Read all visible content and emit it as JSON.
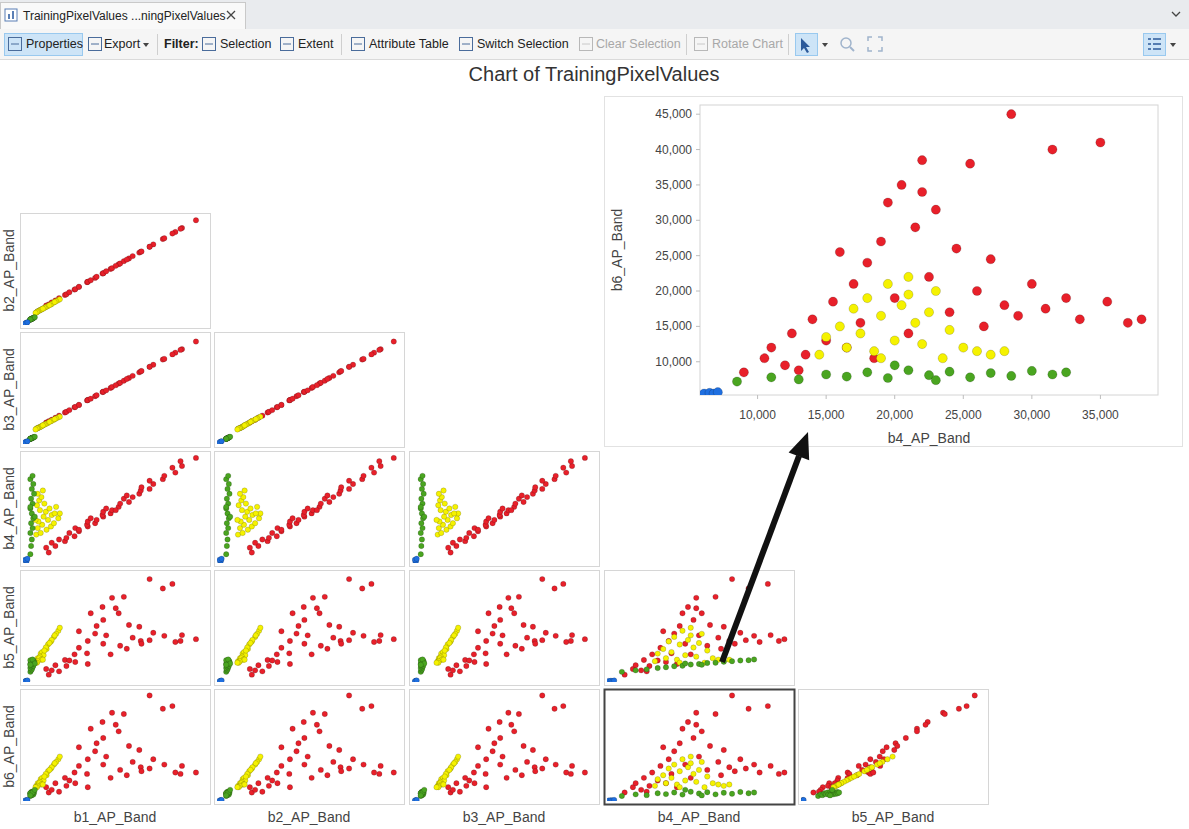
{
  "window": {
    "tab": "TrainingPixelValues ...ningPixelValues"
  },
  "toolbar": {
    "buttons": [
      "Properties",
      "Export"
    ],
    "filter_label": "Filter:",
    "filters": [
      "Selection",
      "Extent"
    ],
    "actions": [
      "Attribute Table",
      "Switch Selection",
      "Clear Selection",
      "Rotate Chart"
    ]
  },
  "chart_data": {
    "type": "scatter_matrix",
    "title": "Chart of TrainingPixelValues",
    "marker": "circle",
    "tick_labels": false,
    "dimensions": [
      {
        "label": "b1_AP_Band",
        "range": [
          7000,
          32000
        ]
      },
      {
        "label": "b2_AP_Band",
        "range": [
          6000,
          34000
        ]
      },
      {
        "label": "b3_AP_Band",
        "range": [
          5500,
          37000
        ]
      },
      {
        "label": "b4_AP_Band",
        "range": [
          5800,
          39200
        ]
      },
      {
        "label": "b5_AP_Band",
        "range": [
          5000,
          48000
        ]
      },
      {
        "label": "b6_AP_Band",
        "range": [
          5300,
          46300
        ]
      }
    ],
    "series": [
      {
        "color": "#e8202a",
        "values": [
          [
            10500,
            11300,
            12100,
            9000,
            7900,
            8500
          ],
          [
            10150,
            11000,
            11700,
            10500,
            10100,
            10500
          ],
          [
            11400,
            12300,
            13100,
            11000,
            11600,
            12000
          ],
          [
            10900,
            11800,
            12500,
            12000,
            9600,
            9500
          ],
          [
            12700,
            13700,
            14600,
            12500,
            13700,
            14000
          ],
          [
            12900,
            13900,
            14800,
            13500,
            11300,
            11000
          ],
          [
            14000,
            15100,
            16100,
            14000,
            15900,
            16000
          ],
          [
            13300,
            14400,
            15300,
            15000,
            13500,
            13000
          ],
          [
            14600,
            15800,
            16800,
            15500,
            18500,
            18500
          ],
          [
            14100,
            15200,
            16200,
            16500,
            12900,
            12000
          ],
          [
            15800,
            17100,
            18200,
            17000,
            21200,
            21000
          ],
          [
            15700,
            17000,
            18100,
            17500,
            16300,
            15500
          ],
          [
            16800,
            18100,
            19300,
            18000,
            24100,
            24000
          ],
          [
            15800,
            17100,
            18200,
            18500,
            12100,
            10500
          ],
          [
            17000,
            18400,
            19600,
            19000,
            27100,
            27000
          ],
          [
            16200,
            17500,
            18600,
            19500,
            32100,
            32500
          ],
          [
            17900,
            19300,
            20600,
            20000,
            20100,
            19000
          ],
          [
            17800,
            19200,
            20500,
            20500,
            34600,
            35000
          ],
          [
            18900,
            20400,
            21700,
            21000,
            15900,
            14000
          ],
          [
            17900,
            19300,
            20600,
            21500,
            29500,
            29000
          ],
          [
            19100,
            20600,
            22000,
            22000,
            38200,
            38500
          ],
          [
            18300,
            19800,
            21000,
            22500,
            23400,
            22000
          ],
          [
            20000,
            21600,
            23000,
            23000,
            32100,
            31500
          ],
          [
            20200,
            21800,
            23200,
            24000,
            19300,
            17000
          ],
          [
            21400,
            23100,
            24600,
            24500,
            27500,
            26000
          ],
          [
            20700,
            22400,
            23800,
            25500,
            38600,
            38000
          ],
          [
            21900,
            23700,
            25200,
            26000,
            22500,
            20000
          ],
          [
            21100,
            22800,
            24300,
            26500,
            18100,
            15000
          ],
          [
            22800,
            24600,
            26200,
            27000,
            26800,
            24500
          ],
          [
            23000,
            24800,
            26500,
            28000,
            21200,
            18000
          ],
          [
            24200,
            26100,
            27800,
            28500,
            45600,
            45000
          ],
          [
            23100,
            24900,
            26600,
            29000,
            20100,
            16500
          ],
          [
            24700,
            26700,
            28400,
            30000,
            24400,
            21000
          ],
          [
            24200,
            26100,
            27800,
            31000,
            21500,
            17500
          ],
          [
            26000,
            28100,
            29900,
            31500,
            41900,
            40000
          ],
          [
            26200,
            28300,
            30100,
            32500,
            23200,
            19000
          ],
          [
            27700,
            29900,
            31900,
            33500,
            20800,
            16000
          ],
          [
            27300,
            29500,
            31400,
            35000,
            43700,
            41000
          ],
          [
            28600,
            30900,
            32900,
            35500,
            23500,
            18500
          ],
          [
            28400,
            30700,
            32700,
            37000,
            21200,
            15500
          ],
          [
            30500,
            32900,
            35100,
            38000,
            21900,
            16000
          ],
          [
            14600,
            15800,
            16800,
            16000,
            25000,
            25500
          ],
          [
            19600,
            21200,
            22500,
            22000,
            34100,
            34000
          ],
          [
            11900,
            12900,
            13700,
            13000,
            9200,
            8800
          ]
        ]
      },
      {
        "color": "#f5f200",
        "values": [
          [
            8800,
            9200,
            9900,
            14500,
            13200,
            11000
          ],
          [
            9400,
            9900,
            10500,
            15000,
            16200,
            13500
          ],
          [
            10200,
            10700,
            11400,
            16000,
            18000,
            15000
          ],
          [
            9000,
            9500,
            10100,
            16500,
            14400,
            12000
          ],
          [
            10800,
            11300,
            12100,
            17000,
            21000,
            17500
          ],
          [
            9600,
            10100,
            10800,
            17500,
            16800,
            14000
          ],
          [
            11200,
            11800,
            12500,
            18000,
            22800,
            19000
          ],
          [
            9100,
            9600,
            10200,
            18500,
            13800,
            11500
          ],
          [
            10400,
            10900,
            11600,
            19000,
            19800,
            16500
          ],
          [
            11800,
            12400,
            13200,
            19500,
            25200,
            21000
          ],
          [
            9800,
            10300,
            11000,
            20000,
            15600,
            13000
          ],
          [
            10900,
            11400,
            12200,
            20500,
            21600,
            18000
          ],
          [
            12000,
            12600,
            13400,
            21000,
            26400,
            22000
          ],
          [
            10100,
            10600,
            11300,
            21500,
            18600,
            15500
          ],
          [
            9300,
            9800,
            10400,
            22000,
            15000,
            12500
          ],
          [
            10600,
            11100,
            11900,
            22500,
            20400,
            17000
          ],
          [
            11500,
            12100,
            12900,
            23000,
            24000,
            20000
          ],
          [
            9900,
            10400,
            11100,
            24000,
            17400,
            14500
          ],
          [
            9200,
            9700,
            10300,
            25000,
            14400,
            12000
          ],
          [
            9500,
            10000,
            10600,
            26000,
            13800,
            11500
          ],
          [
            9000,
            9500,
            10100,
            27000,
            13200,
            11000
          ],
          [
            9700,
            10200,
            10900,
            28000,
            13800,
            11500
          ],
          [
            8900,
            9300,
            10000,
            23500,
            12600,
            10500
          ],
          [
            8700,
            9100,
            9700,
            19000,
            12600,
            10500
          ],
          [
            11300,
            11900,
            12700,
            21000,
            23400,
            19500
          ]
        ]
      },
      {
        "color": "#4aa520",
        "values": [
          [
            8000,
            7400,
            7000,
            8500,
            9000,
            7200
          ],
          [
            8100,
            7500,
            7100,
            11000,
            9600,
            7800
          ],
          [
            8200,
            7600,
            7200,
            13000,
            10000,
            7500
          ],
          [
            8000,
            7400,
            7000,
            15000,
            10500,
            8200
          ],
          [
            8300,
            7700,
            7300,
            16500,
            10800,
            7900
          ],
          [
            8100,
            7500,
            7100,
            18000,
            11200,
            8500
          ],
          [
            8400,
            7800,
            7400,
            19500,
            11400,
            7700
          ],
          [
            8200,
            7600,
            7200,
            21000,
            11900,
            8800
          ],
          [
            8000,
            7400,
            7000,
            22500,
            12100,
            8100
          ],
          [
            8300,
            7700,
            7300,
            24000,
            12500,
            8600
          ],
          [
            8100,
            7500,
            7100,
            25500,
            12600,
            7800
          ],
          [
            8500,
            7900,
            7500,
            27000,
            13000,
            8400
          ],
          [
            8200,
            7600,
            7200,
            28500,
            13200,
            8000
          ],
          [
            8400,
            7800,
            7400,
            30000,
            13500,
            8700
          ],
          [
            8000,
            7400,
            7000,
            31500,
            13600,
            8200
          ],
          [
            8300,
            7700,
            7300,
            32500,
            13900,
            8500
          ],
          [
            8600,
            8000,
            7600,
            20000,
            12300,
            9500
          ],
          [
            8000,
            7400,
            7000,
            23000,
            11800,
            7400
          ]
        ]
      },
      {
        "color": "#1f6fe0",
        "values": [
          [
            7400,
            6500,
            6100,
            6100,
            5400,
            5500
          ],
          [
            7500,
            6600,
            6200,
            6500,
            5500,
            5600
          ],
          [
            7300,
            6400,
            6000,
            6800,
            5300,
            5500
          ],
          [
            7600,
            6700,
            6300,
            7100,
            5600,
            5700
          ]
        ]
      }
    ],
    "detail": {
      "type": "scatter",
      "x_dimension": 3,
      "y_dimension": 5,
      "xlim": [
        5800,
        39200
      ],
      "ylim": [
        5300,
        46300
      ],
      "xticks": [
        {
          "value": 10000,
          "label": "10,000"
        },
        {
          "value": 15000,
          "label": "15,000"
        },
        {
          "value": 20000,
          "label": "20,000"
        },
        {
          "value": 25000,
          "label": "25,000"
        },
        {
          "value": 30000,
          "label": "30,000"
        },
        {
          "value": 35000,
          "label": "35,000"
        }
      ],
      "yticks": [
        {
          "value": 10000,
          "label": "10,000"
        },
        {
          "value": 15000,
          "label": "15,000"
        },
        {
          "value": 20000,
          "label": "20,000"
        },
        {
          "value": 25000,
          "label": "25,000"
        },
        {
          "value": 30000,
          "label": "30,000"
        },
        {
          "value": 35000,
          "label": "35,000"
        },
        {
          "value": 40000,
          "label": "40,000"
        },
        {
          "value": 45000,
          "label": "45,000"
        }
      ]
    }
  }
}
